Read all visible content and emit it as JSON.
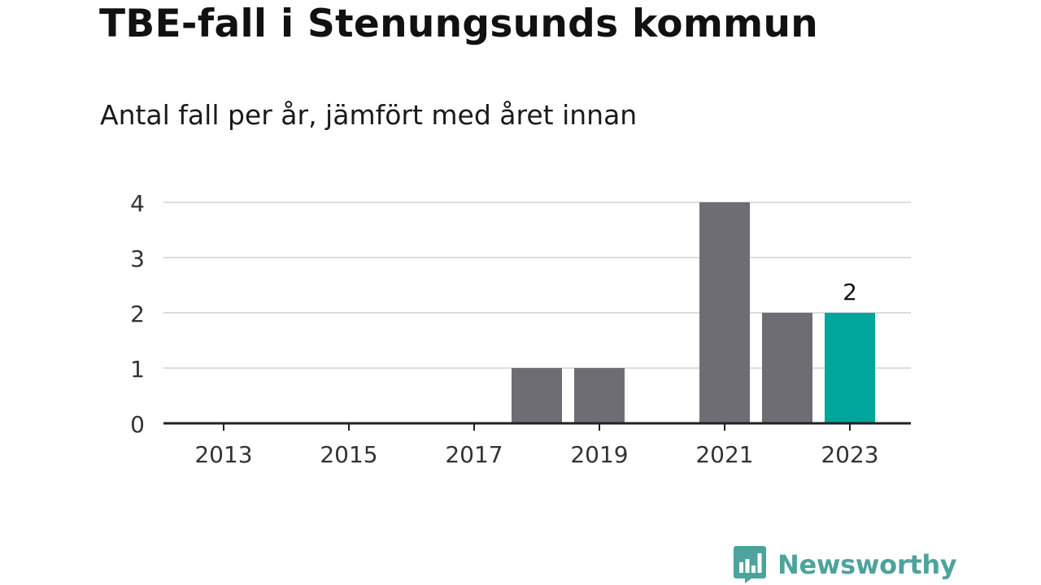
{
  "header": {
    "title": "TBE-fall i Stenungsunds kommun",
    "subtitle": "Antal fall per år, jämfört med året innan"
  },
  "brand": {
    "name": "Newsworthy",
    "icon": "bar-chart-speech-bubble-icon",
    "color": "#4ea39c"
  },
  "colors": {
    "bar_default": "#6e6d73",
    "bar_highlight": "#00a69a",
    "grid": "#dcdcdc",
    "axis": "#222222",
    "tick_text": "#333333"
  },
  "chart_data": {
    "type": "bar",
    "categories": [
      "2013",
      "2014",
      "2015",
      "2016",
      "2017",
      "2018",
      "2019",
      "2020",
      "2021",
      "2022",
      "2023"
    ],
    "values": [
      0,
      0,
      0,
      0,
      0,
      1,
      1,
      0,
      4,
      2,
      2
    ],
    "highlight_index": 10,
    "data_labels": [
      {
        "index": 10,
        "text": "2"
      }
    ],
    "x_tick_labels": [
      "2013",
      "2015",
      "2017",
      "2019",
      "2021",
      "2023"
    ],
    "y_ticks": [
      "0",
      "1",
      "2",
      "3",
      "4"
    ],
    "ylim": [
      0,
      4
    ],
    "grid": true,
    "legend": "none",
    "title": "",
    "xlabel": "",
    "ylabel": ""
  }
}
